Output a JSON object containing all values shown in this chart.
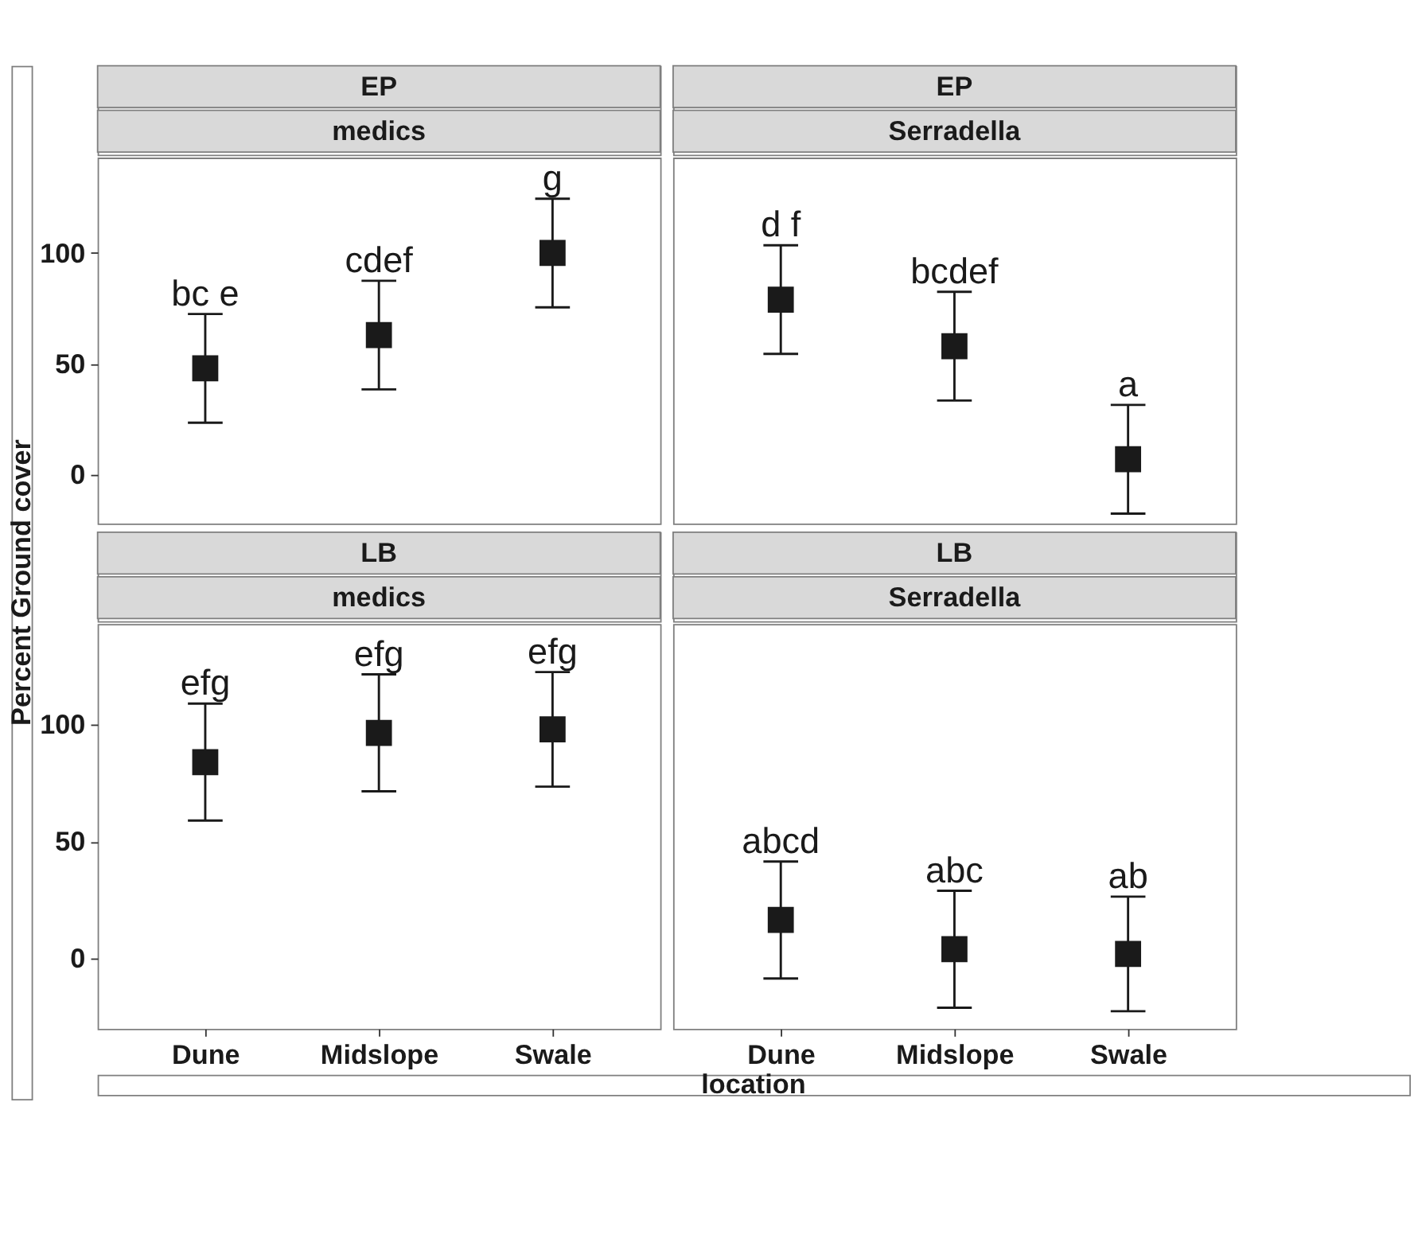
{
  "chart_data": [
    {
      "type": "scatter",
      "title": "EP",
      "subtitle": "medics",
      "ylabel": "Percent Ground cover",
      "categories": [
        "Dune",
        "Midslope",
        "Swale"
      ],
      "values": [
        48,
        63,
        100
      ],
      "errors": [
        24.5,
        24.5,
        24.5
      ],
      "color": "#1a1a1a",
      "marker": "square",
      "ylim": [
        -22,
        143
      ],
      "yticks": [
        0,
        50,
        100
      ],
      "grid": false,
      "tick_labels": "y",
      "annotations": [
        {
          "text": "bc e",
          "x": "Dune",
          "y": 72.5
        },
        {
          "text": "cdef",
          "x": "Midslope",
          "y": 87.5
        },
        {
          "text": "g",
          "x": "Swale",
          "y": 124.5
        }
      ]
    },
    {
      "type": "scatter",
      "title": "EP",
      "subtitle": "Serradella",
      "categories": [
        "Dune",
        "Midslope",
        "Swale"
      ],
      "values": [
        79,
        58,
        7
      ],
      "errors": [
        24.5,
        24.5,
        24.5
      ],
      "color": "#1a1a1a",
      "marker": "square",
      "ylim": [
        -22,
        143
      ],
      "grid": false,
      "tick_labels": false,
      "annotations": [
        {
          "text": "d f",
          "x": "Dune",
          "y": 103.5
        },
        {
          "text": "bcdef",
          "x": "Midslope",
          "y": 82.5
        },
        {
          "text": "a",
          "x": "Swale",
          "y": 31.5
        }
      ]
    },
    {
      "type": "scatter",
      "title": "LB",
      "subtitle": "medics",
      "xlabel": "location",
      "categories": [
        "Dune",
        "Midslope",
        "Swale"
      ],
      "values": [
        84,
        96.5,
        98
      ],
      "errors": [
        25,
        25,
        24.5
      ],
      "color": "#1a1a1a",
      "marker": "square",
      "ylim": [
        -30,
        143
      ],
      "yticks": [
        0,
        50,
        100
      ],
      "grid": false,
      "annotations": [
        {
          "text": "efg",
          "x": "Dune",
          "y": 109
        },
        {
          "text": "efg",
          "x": "Midslope",
          "y": 121.5
        },
        {
          "text": "efg",
          "x": "Swale",
          "y": 122.5
        }
      ]
    },
    {
      "type": "scatter",
      "title": "LB",
      "subtitle": "Serradella",
      "categories": [
        "Dune",
        "Midslope",
        "Swale"
      ],
      "values": [
        16.5,
        4,
        2
      ],
      "errors": [
        25,
        25,
        24.5
      ],
      "color": "#1a1a1a",
      "marker": "square",
      "ylim": [
        -30,
        143
      ],
      "grid": false,
      "tick_labels": "x",
      "annotations": [
        {
          "text": "abcd",
          "x": "Dune",
          "y": 41.5
        },
        {
          "text": "abc",
          "x": "Midslope",
          "y": 29
        },
        {
          "text": "ab",
          "x": "Swale",
          "y": 26.5
        }
      ]
    }
  ]
}
